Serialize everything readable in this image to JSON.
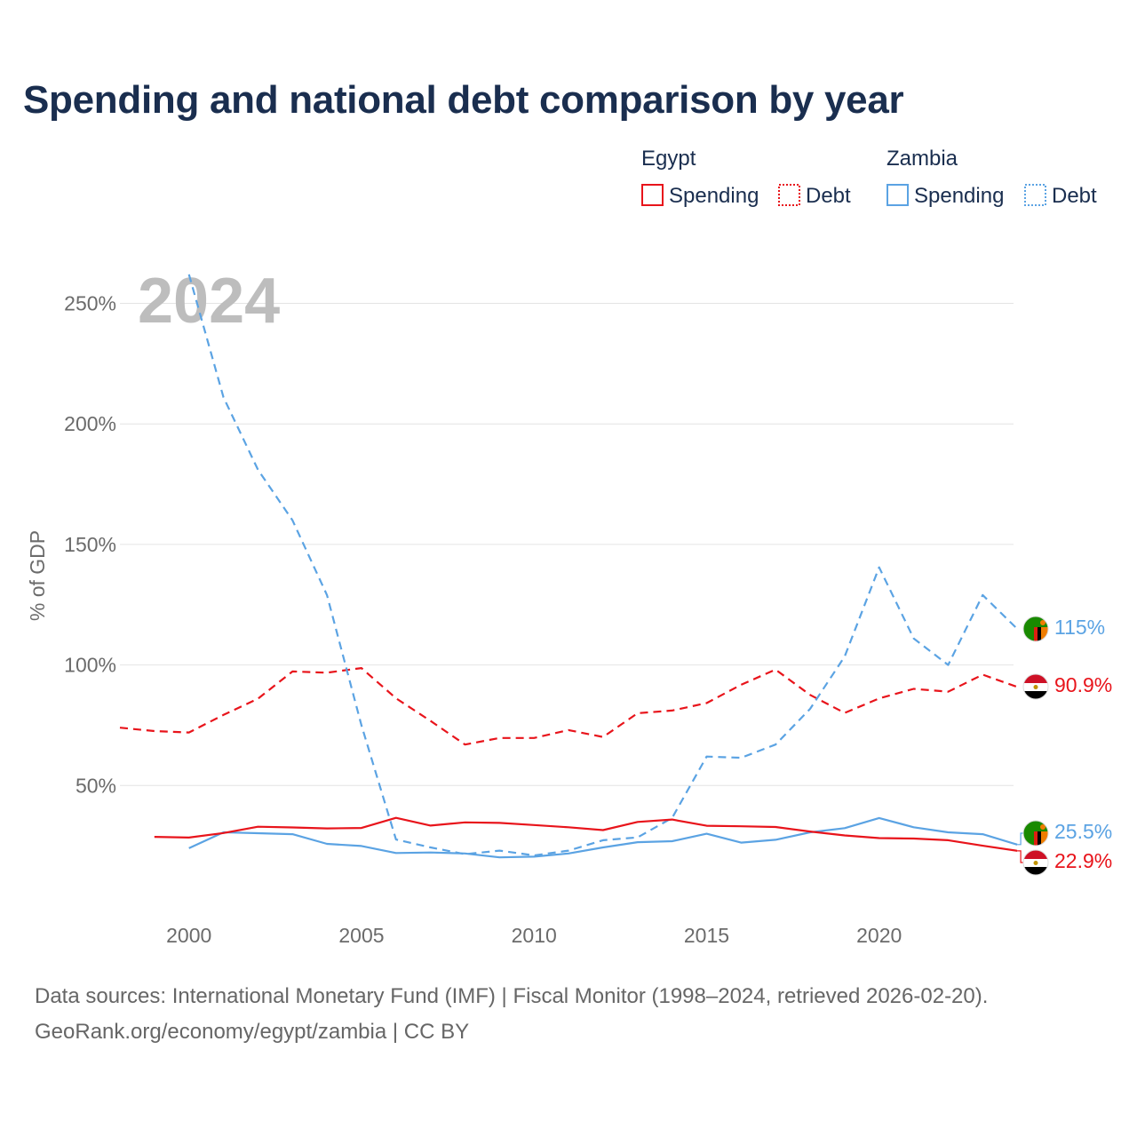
{
  "chart_data": {
    "type": "line",
    "title": "Spending and national debt comparison by year",
    "ylabel": "% of GDP",
    "xlabel": "",
    "year_label": "2024",
    "xlim": [
      1998,
      2024
    ],
    "ylim": [
      0,
      260
    ],
    "x_ticks": [
      2000,
      2005,
      2010,
      2015,
      2020
    ],
    "y_ticks": [
      50,
      100,
      150,
      200,
      250
    ],
    "y_tick_labels": [
      "50%",
      "100%",
      "150%",
      "200%",
      "250%"
    ],
    "legend": {
      "groups": [
        {
          "country": "Egypt",
          "items": [
            "Spending",
            "Debt"
          ]
        },
        {
          "country": "Zambia",
          "items": [
            "Spending",
            "Debt"
          ]
        }
      ]
    },
    "series": [
      {
        "id": "egypt-debt",
        "country": "Egypt",
        "name": "Debt",
        "color": "#e8141b",
        "dashed": true,
        "x": [
          1998,
          1999,
          2000,
          2001,
          2002,
          2003,
          2004,
          2005,
          2006,
          2007,
          2008,
          2009,
          2010,
          2011,
          2012,
          2013,
          2014,
          2015,
          2016,
          2017,
          2018,
          2019,
          2020,
          2021,
          2022,
          2023,
          2024
        ],
        "values": [
          74,
          72.6,
          72,
          79.3,
          86,
          97.3,
          96.8,
          98.7,
          86.2,
          76.8,
          67,
          69.7,
          69.7,
          73,
          70.1,
          80,
          81.1,
          84.2,
          91.8,
          98.1,
          87.6,
          80.1,
          86.1,
          90.1,
          88.9,
          96,
          90.9
        ],
        "end_label": "90.9%"
      },
      {
        "id": "egypt-spending",
        "country": "Egypt",
        "name": "Spending",
        "color": "#e8141b",
        "dashed": false,
        "x": [
          1999,
          2000,
          2001,
          2002,
          2003,
          2004,
          2005,
          2006,
          2007,
          2008,
          2009,
          2010,
          2011,
          2012,
          2013,
          2014,
          2015,
          2016,
          2017,
          2018,
          2019,
          2020,
          2021,
          2022,
          2023,
          2024
        ],
        "values": [
          28.7,
          28.4,
          30.3,
          32.9,
          32.6,
          32.2,
          32.4,
          36.6,
          33.4,
          34.7,
          34.5,
          33.6,
          32.7,
          31.5,
          34.9,
          35.9,
          33.3,
          33.1,
          32.8,
          30.9,
          29.3,
          28.2,
          28,
          27.3,
          25,
          22.9
        ],
        "end_label": "22.9%"
      },
      {
        "id": "zambia-debt",
        "country": "Zambia",
        "name": "Debt",
        "color": "#5ba3e3",
        "dashed": true,
        "x": [
          2000,
          2001,
          2002,
          2003,
          2004,
          2005,
          2006,
          2007,
          2008,
          2009,
          2010,
          2011,
          2012,
          2013,
          2014,
          2015,
          2016,
          2017,
          2018,
          2019,
          2020,
          2021,
          2022,
          2023,
          2024
        ],
        "values": [
          262,
          211,
          181,
          160,
          129,
          75,
          27.6,
          24.3,
          21.5,
          23,
          21,
          23,
          27.3,
          28.5,
          36.5,
          62,
          61.5,
          67,
          81.8,
          103.5,
          140.5,
          111,
          100,
          129,
          115
        ],
        "end_label": "115%"
      },
      {
        "id": "zambia-spending",
        "country": "Zambia",
        "name": "Spending",
        "color": "#5ba3e3",
        "dashed": false,
        "x": [
          2000,
          2001,
          2002,
          2003,
          2004,
          2005,
          2006,
          2007,
          2008,
          2009,
          2010,
          2011,
          2012,
          2013,
          2014,
          2015,
          2016,
          2017,
          2018,
          2019,
          2020,
          2021,
          2022,
          2023,
          2024
        ],
        "values": [
          24,
          30.6,
          30.2,
          29.8,
          25.8,
          24.9,
          22,
          22.2,
          21.8,
          20.2,
          20.5,
          21.8,
          24.3,
          26.5,
          26.9,
          30,
          26.3,
          27.5,
          30.6,
          32.3,
          36.5,
          32.7,
          30.6,
          29.8,
          25.5
        ],
        "end_label": "25.5%"
      }
    ]
  },
  "footer": {
    "line1": "Data sources: International Monetary Fund (IMF) | Fiscal Monitor (1998–2024, retrieved 2026-02-20).",
    "line2": "GeoRank.org/economy/egypt/zambia | CC BY"
  }
}
